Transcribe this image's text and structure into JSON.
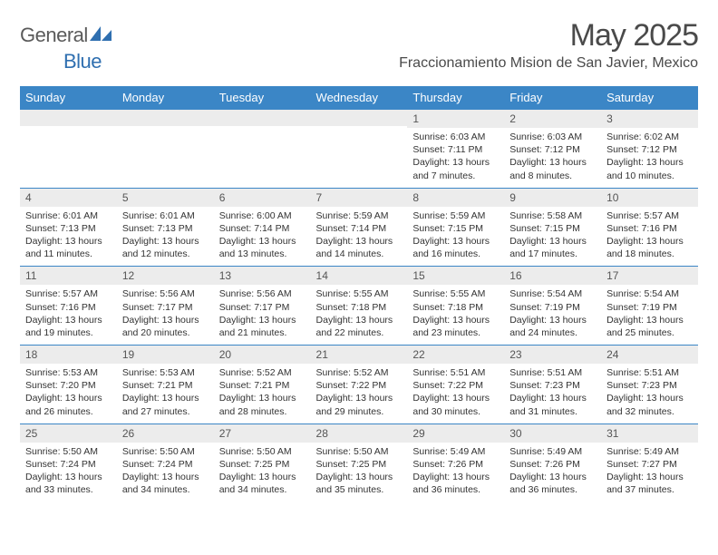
{
  "branding": {
    "logo_word1": "General",
    "logo_word2": "Blue",
    "logo_word1_color": "#6a6a6a",
    "logo_word2_color": "#2f6fb0",
    "logo_icon_color": "#2f6fb0"
  },
  "title": {
    "month": "May 2025",
    "location": "Fraccionamiento Mision de San Javier, Mexico"
  },
  "styling": {
    "header_bg": "#3b86c6",
    "header_text_color": "#ffffff",
    "daynum_bg": "#ececec",
    "row_border_color": "#3b86c6",
    "body_font_size": 10.5,
    "daynum_font_size": 12,
    "header_font_size": 13,
    "columns": 7
  },
  "weekdays": [
    "Sunday",
    "Monday",
    "Tuesday",
    "Wednesday",
    "Thursday",
    "Friday",
    "Saturday"
  ],
  "weeks": [
    [
      {
        "day": "",
        "sunrise": "",
        "sunset": "",
        "daylight": ""
      },
      {
        "day": "",
        "sunrise": "",
        "sunset": "",
        "daylight": ""
      },
      {
        "day": "",
        "sunrise": "",
        "sunset": "",
        "daylight": ""
      },
      {
        "day": "",
        "sunrise": "",
        "sunset": "",
        "daylight": ""
      },
      {
        "day": "1",
        "sunrise": "Sunrise: 6:03 AM",
        "sunset": "Sunset: 7:11 PM",
        "daylight": "Daylight: 13 hours and 7 minutes."
      },
      {
        "day": "2",
        "sunrise": "Sunrise: 6:03 AM",
        "sunset": "Sunset: 7:12 PM",
        "daylight": "Daylight: 13 hours and 8 minutes."
      },
      {
        "day": "3",
        "sunrise": "Sunrise: 6:02 AM",
        "sunset": "Sunset: 7:12 PM",
        "daylight": "Daylight: 13 hours and 10 minutes."
      }
    ],
    [
      {
        "day": "4",
        "sunrise": "Sunrise: 6:01 AM",
        "sunset": "Sunset: 7:13 PM",
        "daylight": "Daylight: 13 hours and 11 minutes."
      },
      {
        "day": "5",
        "sunrise": "Sunrise: 6:01 AM",
        "sunset": "Sunset: 7:13 PM",
        "daylight": "Daylight: 13 hours and 12 minutes."
      },
      {
        "day": "6",
        "sunrise": "Sunrise: 6:00 AM",
        "sunset": "Sunset: 7:14 PM",
        "daylight": "Daylight: 13 hours and 13 minutes."
      },
      {
        "day": "7",
        "sunrise": "Sunrise: 5:59 AM",
        "sunset": "Sunset: 7:14 PM",
        "daylight": "Daylight: 13 hours and 14 minutes."
      },
      {
        "day": "8",
        "sunrise": "Sunrise: 5:59 AM",
        "sunset": "Sunset: 7:15 PM",
        "daylight": "Daylight: 13 hours and 16 minutes."
      },
      {
        "day": "9",
        "sunrise": "Sunrise: 5:58 AM",
        "sunset": "Sunset: 7:15 PM",
        "daylight": "Daylight: 13 hours and 17 minutes."
      },
      {
        "day": "10",
        "sunrise": "Sunrise: 5:57 AM",
        "sunset": "Sunset: 7:16 PM",
        "daylight": "Daylight: 13 hours and 18 minutes."
      }
    ],
    [
      {
        "day": "11",
        "sunrise": "Sunrise: 5:57 AM",
        "sunset": "Sunset: 7:16 PM",
        "daylight": "Daylight: 13 hours and 19 minutes."
      },
      {
        "day": "12",
        "sunrise": "Sunrise: 5:56 AM",
        "sunset": "Sunset: 7:17 PM",
        "daylight": "Daylight: 13 hours and 20 minutes."
      },
      {
        "day": "13",
        "sunrise": "Sunrise: 5:56 AM",
        "sunset": "Sunset: 7:17 PM",
        "daylight": "Daylight: 13 hours and 21 minutes."
      },
      {
        "day": "14",
        "sunrise": "Sunrise: 5:55 AM",
        "sunset": "Sunset: 7:18 PM",
        "daylight": "Daylight: 13 hours and 22 minutes."
      },
      {
        "day": "15",
        "sunrise": "Sunrise: 5:55 AM",
        "sunset": "Sunset: 7:18 PM",
        "daylight": "Daylight: 13 hours and 23 minutes."
      },
      {
        "day": "16",
        "sunrise": "Sunrise: 5:54 AM",
        "sunset": "Sunset: 7:19 PM",
        "daylight": "Daylight: 13 hours and 24 minutes."
      },
      {
        "day": "17",
        "sunrise": "Sunrise: 5:54 AM",
        "sunset": "Sunset: 7:19 PM",
        "daylight": "Daylight: 13 hours and 25 minutes."
      }
    ],
    [
      {
        "day": "18",
        "sunrise": "Sunrise: 5:53 AM",
        "sunset": "Sunset: 7:20 PM",
        "daylight": "Daylight: 13 hours and 26 minutes."
      },
      {
        "day": "19",
        "sunrise": "Sunrise: 5:53 AM",
        "sunset": "Sunset: 7:21 PM",
        "daylight": "Daylight: 13 hours and 27 minutes."
      },
      {
        "day": "20",
        "sunrise": "Sunrise: 5:52 AM",
        "sunset": "Sunset: 7:21 PM",
        "daylight": "Daylight: 13 hours and 28 minutes."
      },
      {
        "day": "21",
        "sunrise": "Sunrise: 5:52 AM",
        "sunset": "Sunset: 7:22 PM",
        "daylight": "Daylight: 13 hours and 29 minutes."
      },
      {
        "day": "22",
        "sunrise": "Sunrise: 5:51 AM",
        "sunset": "Sunset: 7:22 PM",
        "daylight": "Daylight: 13 hours and 30 minutes."
      },
      {
        "day": "23",
        "sunrise": "Sunrise: 5:51 AM",
        "sunset": "Sunset: 7:23 PM",
        "daylight": "Daylight: 13 hours and 31 minutes."
      },
      {
        "day": "24",
        "sunrise": "Sunrise: 5:51 AM",
        "sunset": "Sunset: 7:23 PM",
        "daylight": "Daylight: 13 hours and 32 minutes."
      }
    ],
    [
      {
        "day": "25",
        "sunrise": "Sunrise: 5:50 AM",
        "sunset": "Sunset: 7:24 PM",
        "daylight": "Daylight: 13 hours and 33 minutes."
      },
      {
        "day": "26",
        "sunrise": "Sunrise: 5:50 AM",
        "sunset": "Sunset: 7:24 PM",
        "daylight": "Daylight: 13 hours and 34 minutes."
      },
      {
        "day": "27",
        "sunrise": "Sunrise: 5:50 AM",
        "sunset": "Sunset: 7:25 PM",
        "daylight": "Daylight: 13 hours and 34 minutes."
      },
      {
        "day": "28",
        "sunrise": "Sunrise: 5:50 AM",
        "sunset": "Sunset: 7:25 PM",
        "daylight": "Daylight: 13 hours and 35 minutes."
      },
      {
        "day": "29",
        "sunrise": "Sunrise: 5:49 AM",
        "sunset": "Sunset: 7:26 PM",
        "daylight": "Daylight: 13 hours and 36 minutes."
      },
      {
        "day": "30",
        "sunrise": "Sunrise: 5:49 AM",
        "sunset": "Sunset: 7:26 PM",
        "daylight": "Daylight: 13 hours and 36 minutes."
      },
      {
        "day": "31",
        "sunrise": "Sunrise: 5:49 AM",
        "sunset": "Sunset: 7:27 PM",
        "daylight": "Daylight: 13 hours and 37 minutes."
      }
    ]
  ]
}
